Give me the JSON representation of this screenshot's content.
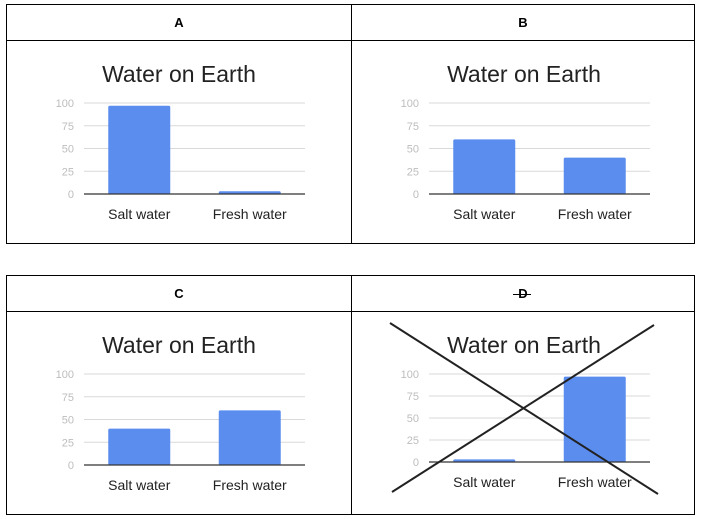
{
  "panels": [
    {
      "label": "A",
      "crossed": false
    },
    {
      "label": "B",
      "crossed": false
    },
    {
      "label": "C",
      "crossed": false
    },
    {
      "label": "D",
      "crossed": true
    }
  ],
  "chart_data": [
    {
      "type": "bar",
      "title": "Water on Earth",
      "categories": [
        "Salt water",
        "Fresh water"
      ],
      "values": [
        97,
        3
      ],
      "ylim": [
        0,
        100
      ],
      "yticks": [
        0,
        25,
        50,
        75,
        100
      ],
      "grid": true,
      "color": "#5b8def"
    },
    {
      "type": "bar",
      "title": "Water on Earth",
      "categories": [
        "Salt water",
        "Fresh water"
      ],
      "values": [
        60,
        40
      ],
      "ylim": [
        0,
        100
      ],
      "yticks": [
        0,
        25,
        50,
        75,
        100
      ],
      "grid": true,
      "color": "#5b8def"
    },
    {
      "type": "bar",
      "title": "Water on Earth",
      "categories": [
        "Salt water",
        "Fresh water"
      ],
      "values": [
        40,
        60
      ],
      "ylim": [
        0,
        100
      ],
      "yticks": [
        0,
        25,
        50,
        75,
        100
      ],
      "grid": true,
      "color": "#5b8def"
    },
    {
      "type": "bar",
      "title": "Water on Earth",
      "categories": [
        "Salt water",
        "Fresh water"
      ],
      "values": [
        3,
        97
      ],
      "ylim": [
        0,
        100
      ],
      "yticks": [
        0,
        25,
        50,
        75,
        100
      ],
      "grid": true,
      "color": "#5b8def"
    }
  ]
}
